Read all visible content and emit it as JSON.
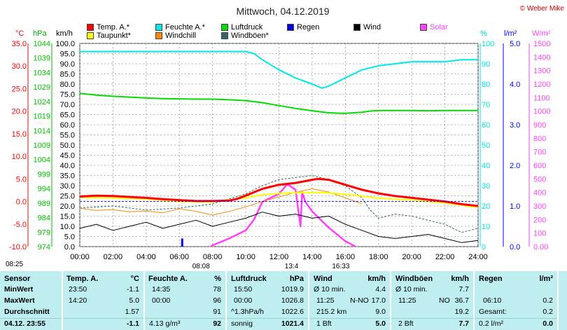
{
  "chart_data": {
    "type": "line",
    "title": "Mittwoch, 04.12.2019",
    "copyright": "© Weber Mike",
    "unit_labels": {
      "temp": "°C",
      "pressure": "hPa",
      "wind": "km/h",
      "humidity": "%",
      "rain": "l/m²",
      "solar": "W/m²"
    },
    "x_ticks": [
      "00:00",
      "02:00",
      "04:00",
      "06:00",
      "08:00",
      "10:00",
      "12:00",
      "14:00",
      "16:00",
      "18:00",
      "20:00",
      "22:00",
      "24:00"
    ],
    "axes": {
      "temp": {
        "range": [
          -10,
          35
        ],
        "ticks": [
          "35.0",
          "30.0",
          "25.0",
          "20.0",
          "15.0",
          "10.0",
          "5.0",
          "0.0",
          "-5.0",
          "-10.0"
        ],
        "color": "#ff0000"
      },
      "pressure": {
        "range": [
          974,
          1044
        ],
        "ticks": [
          "1044",
          "1039",
          "1034",
          "1029",
          "1024",
          "1019",
          "1014",
          "1009",
          "1004",
          "999",
          "994",
          "989",
          "984",
          "979",
          "974"
        ],
        "color": "#00c000"
      },
      "wind": {
        "range": [
          0,
          100
        ],
        "ticks": [
          "100.0",
          "95.0",
          "90.0",
          "85.0",
          "80.0",
          "75.0",
          "70.0",
          "65.0",
          "60.0",
          "55.0",
          "50.0",
          "45.0",
          "40.0",
          "35.0",
          "30.0",
          "25.0",
          "20.0",
          "15.0",
          "10.0",
          "5.0",
          "0.0"
        ],
        "color": "#000000"
      },
      "humidity": {
        "range": [
          0,
          100
        ],
        "ticks": [
          "100",
          "90",
          "80",
          "70",
          "60",
          "50",
          "40",
          "30",
          "20",
          "10",
          "0"
        ],
        "color": "#00e0e0"
      },
      "rain": {
        "range": [
          0,
          5
        ],
        "ticks": [
          "5.0",
          "4.0",
          "3.0",
          "2.0",
          "1.0",
          "0.0"
        ],
        "color": "#0000ff"
      },
      "solar": {
        "range": [
          0,
          1500
        ],
        "ticks": [
          "1500",
          "1400",
          "1300",
          "1200",
          "1100",
          "1000",
          "900",
          "800",
          "700",
          "600",
          "500",
          "400",
          "300",
          "200",
          "100",
          "0.00"
        ],
        "color": "#ff40ff"
      }
    },
    "legend": [
      {
        "name": "Temp. A.*",
        "color": "#ff0000"
      },
      {
        "name": "Feuchte A.*",
        "color": "#00e8e8"
      },
      {
        "name": "Luftdruck",
        "color": "#00dd00"
      },
      {
        "name": "Regen",
        "color": "#0000ee"
      },
      {
        "name": "Wind",
        "color": "#000000"
      },
      {
        "name": "Solar",
        "color": "#ff40ff"
      },
      {
        "name": "Taupunkt*",
        "color": "#ffff00"
      },
      {
        "name": "Windchill",
        "color": "#ff8800"
      },
      {
        "name": "Windböen*",
        "color": "#336666"
      }
    ],
    "series": [
      {
        "name": "Temp. A.*",
        "axis": "temp",
        "color": "#ff0000",
        "x": [
          0,
          1,
          2,
          3,
          4,
          5,
          6,
          7,
          8,
          9,
          9.5,
          10,
          11,
          12,
          13,
          14,
          14.33,
          15,
          16,
          17,
          18,
          19,
          20,
          21,
          22,
          23,
          24
        ],
        "values": [
          1.1,
          1.3,
          1.2,
          1.0,
          0.8,
          0.5,
          0.3,
          0.1,
          0.1,
          0.2,
          0.6,
          1.3,
          2.8,
          3.7,
          4.1,
          4.8,
          5.0,
          4.8,
          3.7,
          2.6,
          1.8,
          1.2,
          0.8,
          0.4,
          0.0,
          -0.6,
          -1.0
        ]
      },
      {
        "name": "Taupunkt*",
        "axis": "temp",
        "color": "#ffff00",
        "x": [
          0,
          2,
          4,
          6,
          8,
          10,
          11,
          12,
          13,
          14,
          15,
          16,
          17,
          18,
          20,
          22,
          23.5,
          24
        ],
        "values": [
          0.9,
          0.8,
          0.5,
          0.0,
          -0.1,
          0.8,
          1.5,
          1.8,
          1.9,
          2.0,
          1.9,
          1.6,
          1.2,
          0.7,
          0.3,
          -0.3,
          -1.1,
          -1.3
        ]
      },
      {
        "name": "Feuchte A.*",
        "axis": "humidity",
        "color": "#00e8e8",
        "x": [
          0,
          2,
          4,
          6,
          8,
          10,
          10.5,
          11,
          12,
          13,
          14,
          14.58,
          15,
          16,
          17,
          18,
          19,
          20,
          21,
          22,
          23,
          23.5,
          24
        ],
        "values": [
          96,
          96,
          96,
          96,
          96,
          96,
          95,
          92,
          87,
          83,
          80,
          78,
          79,
          83,
          87,
          89,
          90,
          91,
          91,
          91,
          92,
          92,
          92
        ]
      },
      {
        "name": "Luftdruck",
        "axis": "pressure",
        "color": "#00dd00",
        "x": [
          0,
          1,
          2,
          3,
          4,
          5,
          6,
          7,
          8,
          9,
          10,
          11,
          12,
          13,
          14,
          15,
          15.83,
          16,
          17,
          17.5,
          18,
          19,
          20,
          21,
          22,
          23,
          24
        ],
        "values": [
          1026.8,
          1026.2,
          1025.8,
          1025.5,
          1025.2,
          1025.0,
          1024.9,
          1024.8,
          1024.8,
          1024.6,
          1024.3,
          1023.6,
          1022.6,
          1021.6,
          1020.8,
          1020.1,
          1019.9,
          1019.9,
          1020.3,
          1020.7,
          1020.9,
          1020.9,
          1020.9,
          1020.8,
          1020.9,
          1020.9,
          1020.9
        ]
      },
      {
        "name": "Wind",
        "axis": "wind",
        "color": "#000000",
        "x": [
          0,
          1,
          2,
          3,
          4,
          5,
          6,
          7,
          8,
          9,
          10,
          11,
          12,
          13,
          14,
          15,
          16,
          17,
          18,
          19,
          20,
          21,
          22,
          23,
          24
        ],
        "values": [
          9,
          11,
          8,
          10,
          12,
          9,
          11,
          13,
          10,
          12,
          14,
          17,
          15,
          16,
          14,
          15,
          11,
          8,
          5,
          4,
          5,
          6,
          4,
          2,
          3
        ]
      },
      {
        "name": "Windböen*",
        "axis": "wind",
        "color": "#336666",
        "x": [
          0,
          2,
          4,
          6,
          8,
          10,
          11,
          12,
          13,
          14,
          15,
          16,
          17,
          17.5,
          18,
          19,
          20,
          21,
          22,
          23,
          24
        ],
        "values": [
          19,
          20,
          18,
          19,
          21,
          26,
          30,
          33,
          34,
          35,
          33,
          30,
          24,
          18,
          14,
          16,
          15,
          13,
          11,
          7,
          9
        ]
      },
      {
        "name": "Windchill",
        "axis": "temp",
        "color": "#ff8800",
        "x": [
          0,
          1,
          2,
          3,
          4,
          5,
          6,
          7,
          8,
          9,
          10,
          11,
          12,
          13,
          14,
          15,
          16,
          17
        ],
        "values": [
          -1.5,
          -2.0,
          -1.8,
          -2.3,
          -2.1,
          -2.5,
          -1.6,
          -2.2,
          -3.0,
          -2.2,
          -1.2,
          0.0,
          1.0,
          2.0,
          2.8,
          2.1,
          0.8,
          -0.5
        ]
      },
      {
        "name": "Solar",
        "axis": "solar",
        "color": "#ff40ff",
        "x": [
          7.9,
          8.0,
          9.0,
          10.0,
          10.5,
          11.0,
          12.0,
          12.5,
          13.0,
          13.3,
          13.4,
          13.6,
          14.0,
          15.0,
          16.0,
          16.55,
          16.6
        ],
        "values": [
          0,
          10,
          60,
          120,
          200,
          330,
          390,
          460,
          420,
          150,
          400,
          330,
          260,
          140,
          40,
          5,
          0
        ]
      }
    ],
    "rain_bars": [
      {
        "x": 6.17,
        "value": 0.2
      }
    ],
    "time_markers": [
      {
        "label": "08:25",
        "x": 8.42,
        "row": 1
      },
      {
        "label": "08:08",
        "x": 8.13,
        "row": 2
      },
      {
        "label": "13:4",
        "x": 13.7,
        "row": 2
      },
      {
        "label": "16:33",
        "x": 16.55,
        "row": 2
      }
    ]
  },
  "stats": {
    "sensor": {
      "header": "Sensor",
      "rows": [
        "MinWert",
        "MaxWert",
        "Durchschnitt"
      ],
      "footer": "04.12. 23:55"
    },
    "temp": {
      "header": "Temp. A.",
      "unit": "°C",
      "min_time": "23:50",
      "min": "-1.1",
      "max_time": "14:20",
      "max": "5.0",
      "avg": "1.57",
      "current": "-1.1"
    },
    "humidity": {
      "header": "Feuchte A.",
      "unit": "%",
      "min_time": "14:35",
      "min": "78",
      "max_time": "00:00",
      "max": "96",
      "avg": "91",
      "footer_note": "4.13 g/m³",
      "current": "92"
    },
    "pressure": {
      "header": "Luftdruck",
      "unit": "hPa",
      "min_time": "15:50",
      "min": "1019.9",
      "max_time": "00:00",
      "max": "1026.8",
      "trend": "^1.3hPa/h",
      "avg": "1022.6",
      "weather": "sonnig",
      "current": "1021.4"
    },
    "wind": {
      "header": "Wind",
      "unit": "km/h",
      "min_label": "Ø 10 min.",
      "min": "4.4",
      "max_time": "11:25",
      "max_dir": "N-NO",
      "max": "17.0",
      "distance": "215.2 km",
      "avg": "9.0",
      "beaufort": "1 Bft",
      "current": "5.0"
    },
    "gusts": {
      "header": "Windböen",
      "unit": "km/h",
      "min_label": "Ø 10 min.",
      "min": "7.7",
      "max_time": "11:25",
      "max_dir": "NO",
      "max": "36.7",
      "avg": "19.2",
      "beaufort": "2 Bft",
      "current": "7.7"
    },
    "rain": {
      "header": "Regen",
      "unit": "l/m²",
      "max_time": "06:10",
      "max": "0.2",
      "total_label": "Gesamt:",
      "total": "0.2",
      "rate": "0.2 l/m²",
      "current": "0.0"
    }
  }
}
